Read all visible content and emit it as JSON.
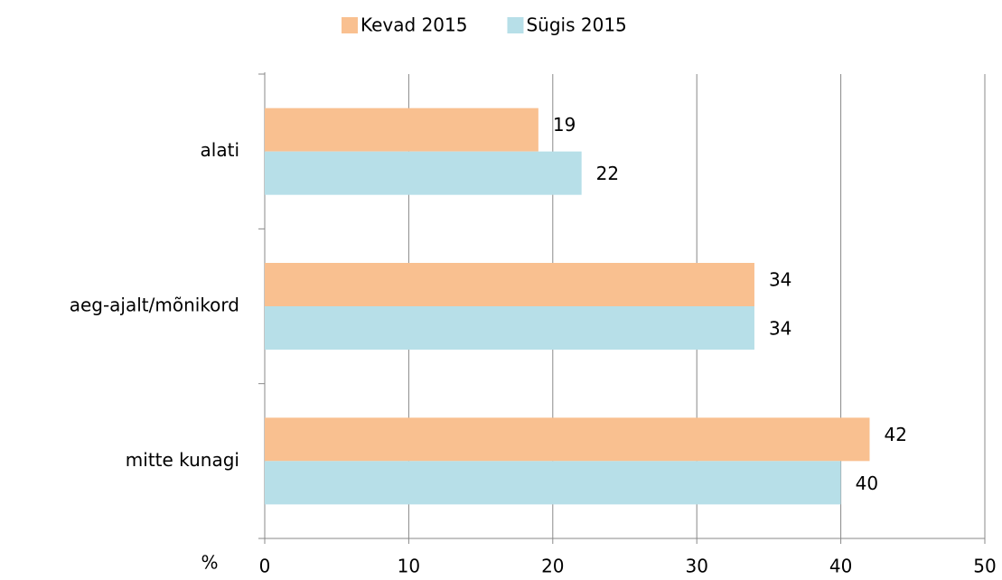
{
  "chart_data": {
    "type": "bar",
    "orientation": "horizontal",
    "categories": [
      "alati",
      "aeg-ajalt/mõnikord",
      "mitte kunagi"
    ],
    "series": [
      {
        "name": "Kevad 2015",
        "color": "#f9c090",
        "values": [
          19,
          34,
          42
        ]
      },
      {
        "name": "Sügis 2015",
        "color": "#b7dfe8",
        "values": [
          22,
          34,
          40
        ]
      }
    ],
    "x_label": "%",
    "xlim": [
      0,
      50
    ],
    "xticks": [
      0,
      10,
      20,
      30,
      40,
      50
    ],
    "grid": true,
    "legend": "top"
  }
}
